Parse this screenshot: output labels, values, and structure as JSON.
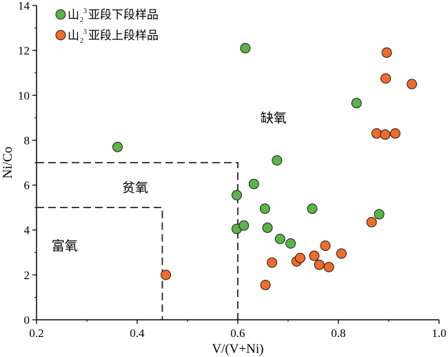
{
  "chart_data": {
    "type": "scatter",
    "xlabel": "V/(V+Ni)",
    "ylabel": "Ni/Co",
    "xlim": [
      0.2,
      1.0
    ],
    "ylim": [
      0,
      14
    ],
    "x_ticks": [
      "0.2",
      "0.4",
      "0.6",
      "0.8",
      "1.0"
    ],
    "y_ticks": [
      "0",
      "2",
      "4",
      "6",
      "8",
      "10",
      "12",
      "14"
    ],
    "grid": false,
    "legend_position": "top-left",
    "series": [
      {
        "name_base": "山",
        "name_sub": "2",
        "name_sup": "3",
        "name_tail": "亚段下段样品",
        "color": "#5cb34a",
        "points": [
          [
            0.361,
            7.7
          ],
          [
            0.615,
            12.1
          ],
          [
            0.598,
            5.55
          ],
          [
            0.598,
            4.05
          ],
          [
            0.612,
            4.2
          ],
          [
            0.632,
            6.05
          ],
          [
            0.654,
            4.95
          ],
          [
            0.659,
            4.1
          ],
          [
            0.678,
            7.1
          ],
          [
            0.684,
            3.6
          ],
          [
            0.705,
            3.4
          ],
          [
            0.748,
            4.95
          ],
          [
            0.836,
            9.65
          ],
          [
            0.881,
            4.7
          ]
        ]
      },
      {
        "name_base": "山",
        "name_sub": "2",
        "name_sup": "3",
        "name_tail": "亚段上段样品",
        "color": "#ef6c2c",
        "points": [
          [
            0.457,
            2.0
          ],
          [
            0.655,
            1.55
          ],
          [
            0.668,
            2.55
          ],
          [
            0.717,
            2.6
          ],
          [
            0.724,
            2.75
          ],
          [
            0.752,
            2.85
          ],
          [
            0.762,
            2.45
          ],
          [
            0.774,
            3.3
          ],
          [
            0.781,
            2.35
          ],
          [
            0.806,
            2.95
          ],
          [
            0.866,
            4.35
          ],
          [
            0.876,
            8.3
          ],
          [
            0.893,
            8.25
          ],
          [
            0.894,
            10.75
          ],
          [
            0.896,
            11.9
          ],
          [
            0.913,
            8.3
          ],
          [
            0.946,
            10.5
          ]
        ]
      }
    ],
    "boundaries": [
      {
        "x": 0.45,
        "y": 5,
        "style": "dashed"
      },
      {
        "x": 0.6,
        "y": 7,
        "style": "dashed"
      }
    ],
    "annotations": [
      {
        "text": "缺氧",
        "x": 0.645,
        "y": 8.8
      },
      {
        "text": "贫氧",
        "x": 0.37,
        "y": 5.7
      },
      {
        "text": "富氧",
        "x": 0.23,
        "y": 3.1
      }
    ]
  }
}
